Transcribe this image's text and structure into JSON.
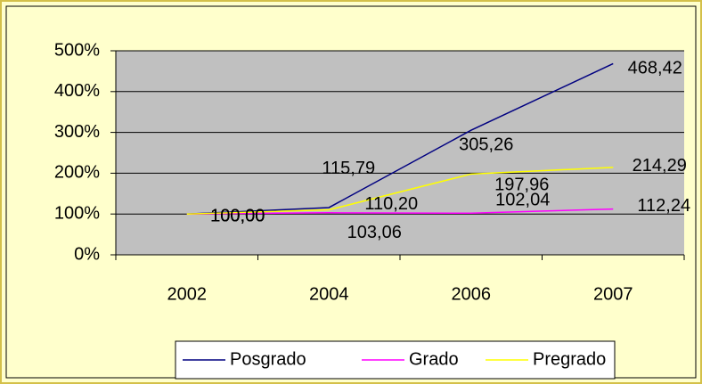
{
  "chart_data": {
    "type": "line",
    "categories": [
      "2002",
      "2004",
      "2006",
      "2007"
    ],
    "series": [
      {
        "name": "Posgrado",
        "color": "#000080",
        "values": [
          100,
          115.79,
          305.26,
          468.42
        ],
        "value_labels": [
          "100,00",
          "115,79",
          "305,26",
          "468,42"
        ]
      },
      {
        "name": "Grado",
        "color": "#ff00ff",
        "values": [
          100,
          103.06,
          102.04,
          112.24
        ],
        "value_labels": [
          "100,00",
          "103,06",
          "102,04",
          "112,24"
        ]
      },
      {
        "name": "Pregrado",
        "color": "#ffff00",
        "values": [
          100,
          110.2,
          197.96,
          214.29
        ],
        "value_labels": [
          "100,00",
          "110,20",
          "197,96",
          "214,29"
        ]
      }
    ],
    "ylim": [
      0,
      500
    ],
    "yticks": [
      {
        "value": 0,
        "label": "0%"
      },
      {
        "value": 100,
        "label": "100%"
      },
      {
        "value": 200,
        "label": "200%"
      },
      {
        "value": 300,
        "label": "300%"
      },
      {
        "value": 400,
        "label": "400%"
      },
      {
        "value": 500,
        "label": "500%"
      }
    ],
    "grid": true,
    "legend": "bottom"
  }
}
